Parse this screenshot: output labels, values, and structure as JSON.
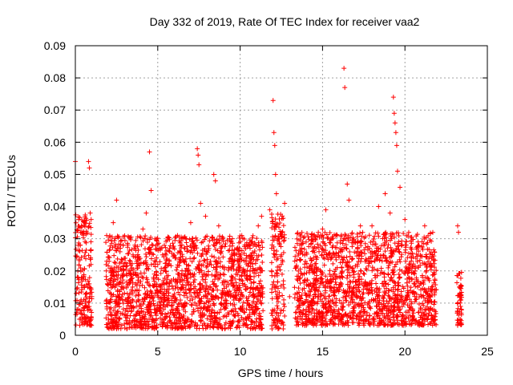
{
  "chart_data": {
    "type": "scatter",
    "title": "Day 332 of 2019, Rate Of TEC Index for receiver vaa2",
    "xlabel": "GPS time / hours",
    "ylabel": "ROTI / TECUs",
    "xlim": [
      0,
      25
    ],
    "ylim": [
      0,
      0.09
    ],
    "xticks": [
      0,
      5,
      10,
      15,
      20,
      25
    ],
    "xtick_labels": [
      "0",
      "5",
      "10",
      "15",
      "20",
      "25"
    ],
    "yticks": [
      0,
      0.01,
      0.02,
      0.03,
      0.04,
      0.05,
      0.06,
      0.07,
      0.08,
      0.09
    ],
    "ytick_labels": [
      "0",
      "0.01",
      "0.02",
      "0.03",
      "0.04",
      "0.05",
      "0.06",
      "0.07",
      "0.08",
      "0.09"
    ],
    "grid": true,
    "legend": "none",
    "marker": "plus",
    "color": "#ff0000",
    "series": [
      {
        "values": [
          [
            0.0,
            0.054
          ],
          [
            0.05,
            0.013
          ],
          [
            0.1,
            0.008
          ],
          [
            0.15,
            0.02
          ],
          [
            0.2,
            0.036
          ],
          [
            0.25,
            0.005
          ],
          [
            0.3,
            0.028
          ],
          [
            0.35,
            0.011
          ],
          [
            0.4,
            0.032
          ],
          [
            0.45,
            0.004
          ],
          [
            0.5,
            0.018
          ],
          [
            0.55,
            0.035
          ],
          [
            0.6,
            0.009
          ],
          [
            0.75,
            0.015
          ],
          [
            0.8,
            0.054
          ],
          [
            0.85,
            0.052
          ],
          [
            0.9,
            0.038
          ],
          [
            0.95,
            0.022
          ],
          [
            1.0,
            0.012
          ],
          [
            1.9,
            0.031
          ],
          [
            2.1,
            0.017
          ],
          [
            2.3,
            0.035
          ],
          [
            2.5,
            0.042
          ],
          [
            2.7,
            0.005
          ],
          [
            2.9,
            0.028
          ],
          [
            3.1,
            0.019
          ],
          [
            3.5,
            0.025
          ],
          [
            3.8,
            0.011
          ],
          [
            4.1,
            0.033
          ],
          [
            4.3,
            0.038
          ],
          [
            4.5,
            0.057
          ],
          [
            4.6,
            0.045
          ],
          [
            4.8,
            0.008
          ],
          [
            5.0,
            0.022
          ],
          [
            5.4,
            0.028
          ],
          [
            5.8,
            0.004
          ],
          [
            6.2,
            0.031
          ],
          [
            6.6,
            0.017
          ],
          [
            7.0,
            0.035
          ],
          [
            7.4,
            0.058
          ],
          [
            7.45,
            0.056
          ],
          [
            7.5,
            0.053
          ],
          [
            7.6,
            0.041
          ],
          [
            7.9,
            0.037
          ],
          [
            8.2,
            0.023
          ],
          [
            8.4,
            0.05
          ],
          [
            8.5,
            0.048
          ],
          [
            8.7,
            0.034
          ],
          [
            9.0,
            0.009
          ],
          [
            9.4,
            0.029
          ],
          [
            9.8,
            0.015
          ],
          [
            10.1,
            0.031
          ],
          [
            10.4,
            0.024
          ],
          [
            10.8,
            0.007
          ],
          [
            11.1,
            0.034
          ],
          [
            11.3,
            0.037
          ],
          [
            11.8,
            0.039
          ],
          [
            12.0,
            0.073
          ],
          [
            12.05,
            0.063
          ],
          [
            12.1,
            0.059
          ],
          [
            12.15,
            0.05
          ],
          [
            12.2,
            0.044
          ],
          [
            12.3,
            0.002
          ],
          [
            12.5,
            0.025
          ],
          [
            12.7,
            0.041
          ],
          [
            13.0,
            0.012
          ],
          [
            13.4,
            0.021
          ],
          [
            13.8,
            0.029
          ],
          [
            14.2,
            0.009
          ],
          [
            14.6,
            0.027
          ],
          [
            15.0,
            0.033
          ],
          [
            15.2,
            0.039
          ],
          [
            15.5,
            0.015
          ],
          [
            15.8,
            0.031
          ],
          [
            16.1,
            0.026
          ],
          [
            16.3,
            0.083
          ],
          [
            16.35,
            0.077
          ],
          [
            16.5,
            0.047
          ],
          [
            16.6,
            0.042
          ],
          [
            16.9,
            0.018
          ],
          [
            17.3,
            0.034
          ],
          [
            17.7,
            0.007
          ],
          [
            18.0,
            0.034
          ],
          [
            18.4,
            0.04
          ],
          [
            18.8,
            0.044
          ],
          [
            19.1,
            0.038
          ],
          [
            19.3,
            0.074
          ],
          [
            19.35,
            0.069
          ],
          [
            19.4,
            0.066
          ],
          [
            19.45,
            0.063
          ],
          [
            19.5,
            0.059
          ],
          [
            19.55,
            0.051
          ],
          [
            19.7,
            0.046
          ],
          [
            20.0,
            0.036
          ],
          [
            20.4,
            0.024
          ],
          [
            20.8,
            0.029
          ],
          [
            21.2,
            0.034
          ],
          [
            21.5,
            0.011
          ],
          [
            21.8,
            0.019
          ],
          [
            23.2,
            0.034
          ],
          [
            23.25,
            0.032
          ],
          [
            23.3,
            0.015
          ],
          [
            23.35,
            0.005
          ],
          [
            23.4,
            0.011
          ]
        ]
      }
    ],
    "dense_segments": [
      {
        "x_start": 0.0,
        "x_end": 1.0,
        "y_min": 0.003,
        "y_max": 0.038
      },
      {
        "x_start": 1.85,
        "x_end": 11.4,
        "y_min": 0.002,
        "y_max": 0.031
      },
      {
        "x_start": 11.9,
        "x_end": 12.7,
        "y_min": 0.002,
        "y_max": 0.038
      },
      {
        "x_start": 13.3,
        "x_end": 21.9,
        "y_min": 0.003,
        "y_max": 0.032
      },
      {
        "x_start": 23.15,
        "x_end": 23.45,
        "y_min": 0.003,
        "y_max": 0.02
      }
    ]
  }
}
